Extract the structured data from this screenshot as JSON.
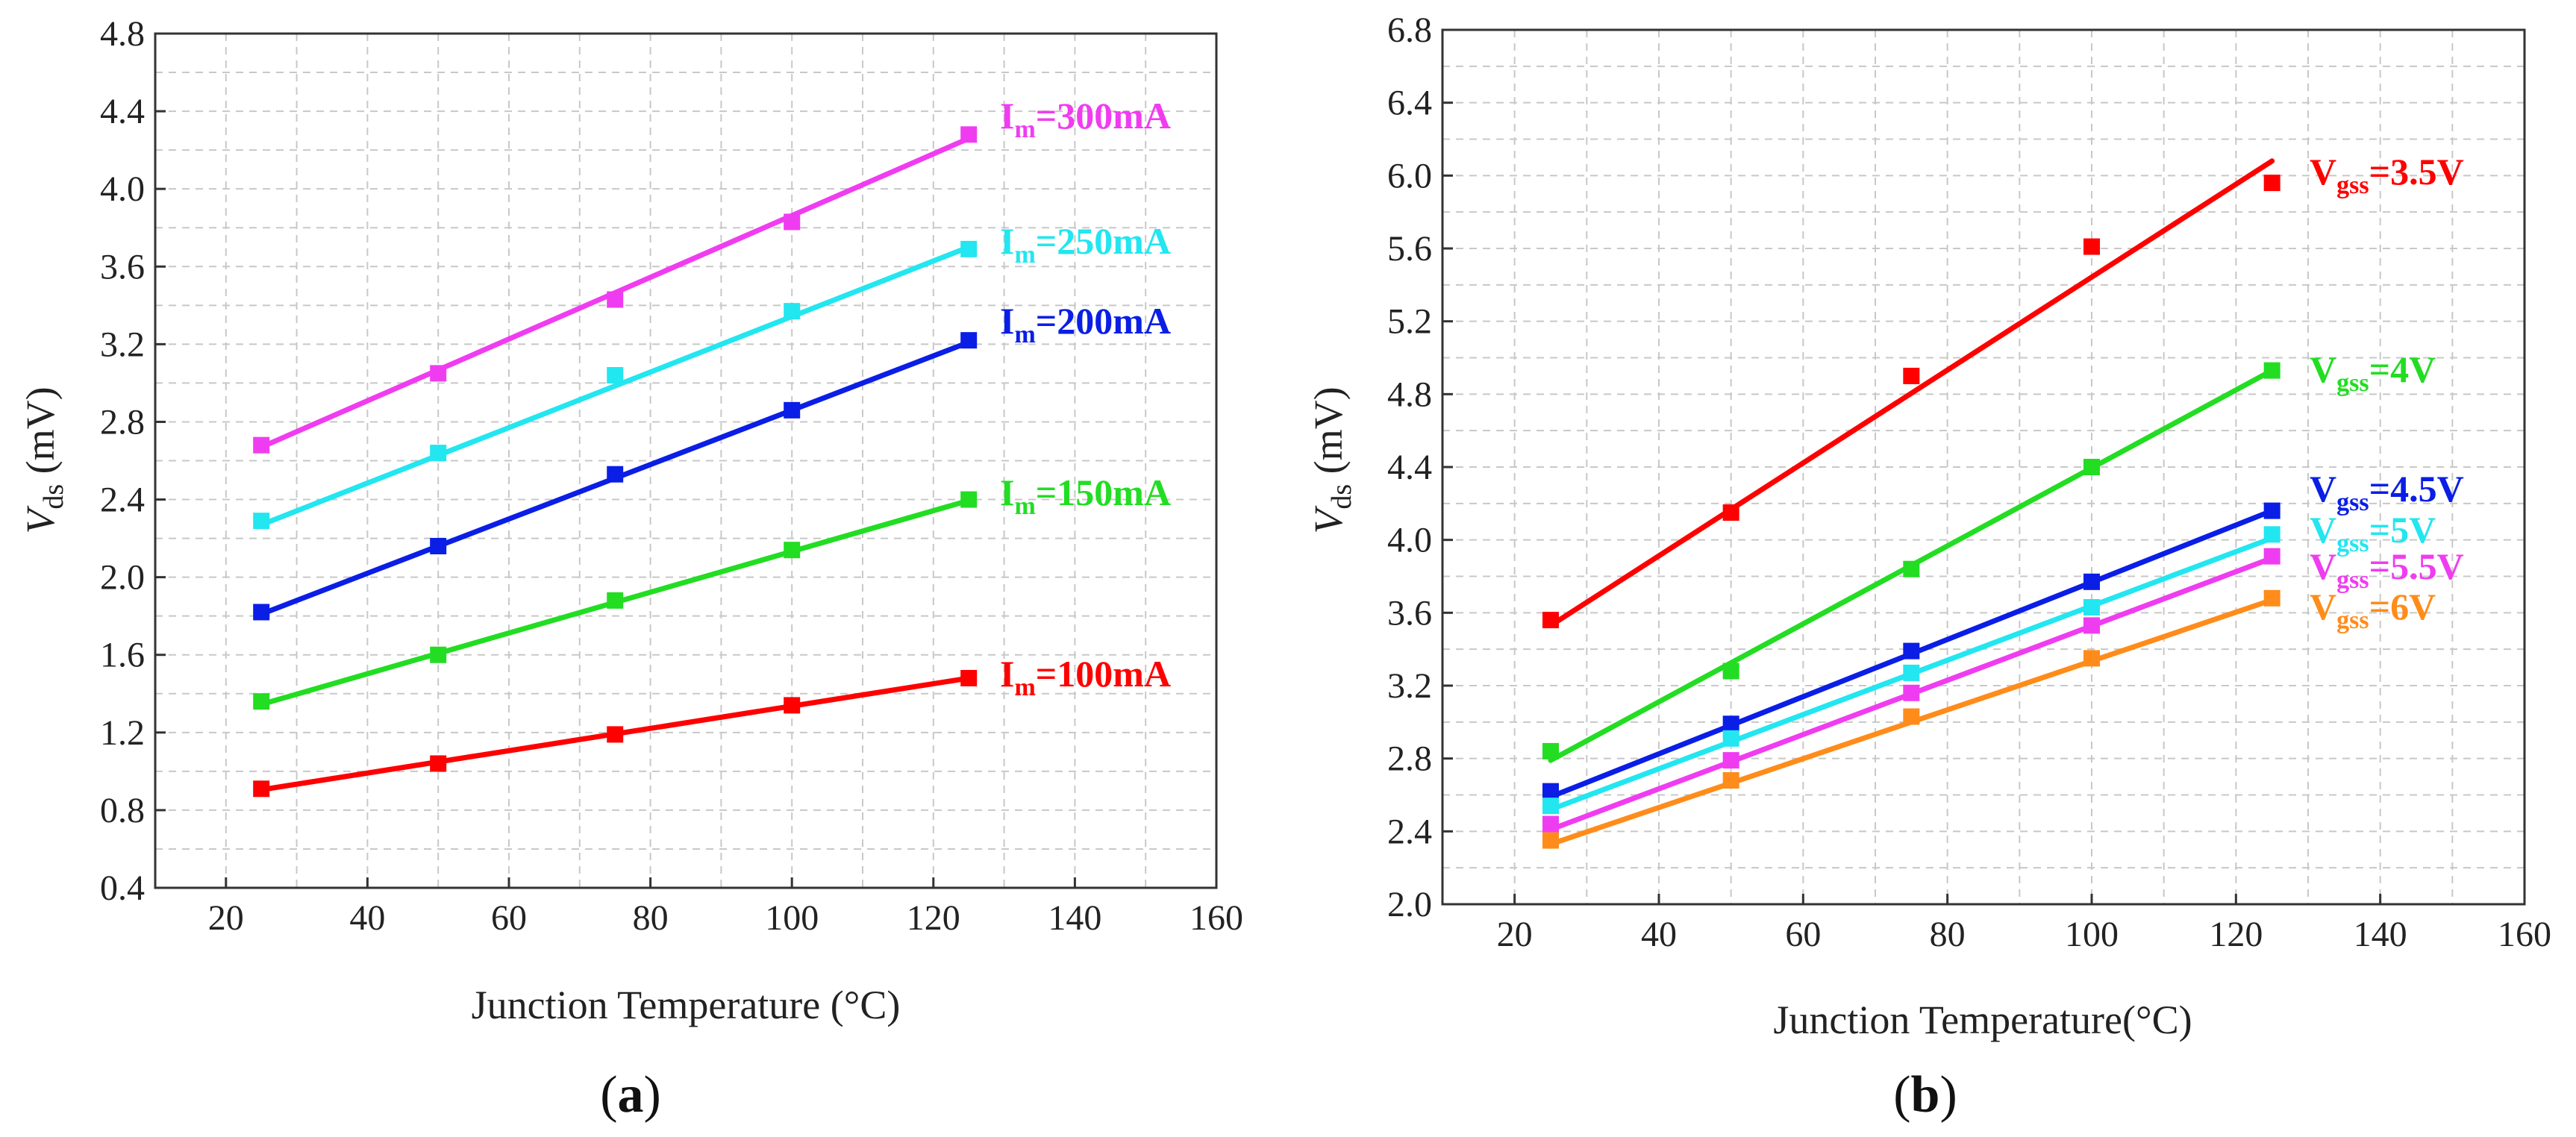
{
  "chart_data": [
    {
      "type": "line",
      "panel_label": "a",
      "xlabel": "Junction Temperature (°C)",
      "ylabel_main": "V",
      "ylabel_sub": "ds",
      "ylabel_unit": " (mV)",
      "xlim": [
        10,
        160
      ],
      "ylim": [
        0.4,
        4.8
      ],
      "xticks": [
        20,
        40,
        60,
        80,
        100,
        120,
        140,
        160
      ],
      "yticks": [
        0.4,
        0.8,
        1.2,
        1.6,
        2.0,
        2.4,
        2.8,
        3.2,
        3.6,
        4.0,
        4.4,
        4.8
      ],
      "ytick_labels": [
        "0.4",
        "0.8",
        "1.2",
        "1.6",
        "2.0",
        "2.4",
        "2.8",
        "3.2",
        "3.6",
        "4.0",
        "4.4",
        "4.8"
      ],
      "grid": true,
      "x": [
        25,
        50,
        75,
        100,
        125
      ],
      "series": [
        {
          "name": "I_m=100mA",
          "label_main": "I",
          "label_sub": "m",
          "label_rest": "=100mA",
          "color": "#ff0000",
          "values": [
            0.91,
            1.04,
            1.19,
            1.34,
            1.48
          ],
          "fit": [
            0.905,
            1.48
          ]
        },
        {
          "name": "I_m=150mA",
          "label_main": "I",
          "label_sub": "m",
          "label_rest": "=150mA",
          "color": "#22dd22",
          "values": [
            1.36,
            1.6,
            1.88,
            2.14,
            2.4
          ],
          "fit": [
            1.345,
            2.395
          ]
        },
        {
          "name": "I_m=200mA",
          "label_main": "I",
          "label_sub": "m",
          "label_rest": "=200mA",
          "color": "#0a1ee6",
          "values": [
            1.82,
            2.16,
            2.53,
            2.86,
            3.22
          ],
          "fit": [
            1.81,
            3.21
          ]
        },
        {
          "name": "I_m=250mA",
          "label_main": "I",
          "label_sub": "m",
          "label_rest": "=250mA",
          "color": "#22e6f0",
          "values": [
            2.29,
            2.64,
            3.04,
            3.37,
            3.69
          ],
          "fit": [
            2.27,
            3.7
          ]
        },
        {
          "name": "I_m=300mA",
          "label_main": "I",
          "label_sub": "m",
          "label_rest": "=300mA",
          "color": "#f03cf0",
          "values": [
            2.68,
            3.05,
            3.43,
            3.83,
            4.28
          ],
          "fit": [
            2.67,
            4.26
          ]
        }
      ]
    },
    {
      "type": "line",
      "panel_label": "b",
      "xlabel": "Junction Temperature(°C)",
      "ylabel_main": "V",
      "ylabel_sub": "ds",
      "ylabel_unit": " (mV)",
      "xlim": [
        10,
        160
      ],
      "ylim": [
        2.0,
        6.8
      ],
      "xticks": [
        20,
        40,
        60,
        80,
        100,
        120,
        140,
        160
      ],
      "yticks": [
        2.0,
        2.4,
        2.8,
        3.2,
        3.6,
        4.0,
        4.4,
        4.8,
        5.2,
        5.6,
        6.0,
        6.4,
        6.8
      ],
      "ytick_labels": [
        "2.0",
        "2.4",
        "2.8",
        "3.2",
        "3.6",
        "4.0",
        "4.4",
        "4.8",
        "5.2",
        "5.6",
        "6.0",
        "6.4",
        "6.8"
      ],
      "grid": true,
      "x": [
        25,
        50,
        75,
        100,
        125
      ],
      "series": [
        {
          "name": "V_gss=3.5V",
          "label_main": "V",
          "label_sub": "gss",
          "label_rest": "=3.5V",
          "color": "#ff0000",
          "values": [
            3.56,
            4.15,
            4.9,
            5.61,
            5.96
          ],
          "fit": [
            3.53,
            6.08
          ]
        },
        {
          "name": "V_gss=4V",
          "label_main": "V",
          "label_sub": "gss",
          "label_rest": "=4V",
          "color": "#22dd22",
          "values": [
            2.84,
            3.28,
            3.84,
            4.4,
            4.93
          ],
          "fit": [
            2.79,
            4.93
          ]
        },
        {
          "name": "V_gss=4.5V",
          "label_main": "V",
          "label_sub": "gss",
          "label_rest": "=4.5V",
          "color": "#0a1ee6",
          "values": [
            2.62,
            2.99,
            3.39,
            3.77,
            4.16
          ],
          "fit": [
            2.59,
            4.16
          ]
        },
        {
          "name": "V_gss=5V",
          "label_main": "V",
          "label_sub": "gss",
          "label_rest": "=5V",
          "color": "#22e6f0",
          "values": [
            2.54,
            2.91,
            3.27,
            3.63,
            4.03
          ],
          "fit": [
            2.52,
            4.01
          ]
        },
        {
          "name": "V_gss=5.5V",
          "label_main": "V",
          "label_sub": "gss",
          "label_rest": "=5.5V",
          "color": "#f03cf0",
          "values": [
            2.44,
            2.79,
            3.16,
            3.53,
            3.91
          ],
          "fit": [
            2.41,
            3.9
          ]
        },
        {
          "name": "V_gss=6V",
          "label_main": "V",
          "label_sub": "gss",
          "label_rest": "=6V",
          "color": "#ff8c1a",
          "values": [
            2.35,
            2.68,
            3.03,
            3.35,
            3.68
          ],
          "fit": [
            2.33,
            3.67
          ]
        }
      ]
    }
  ]
}
